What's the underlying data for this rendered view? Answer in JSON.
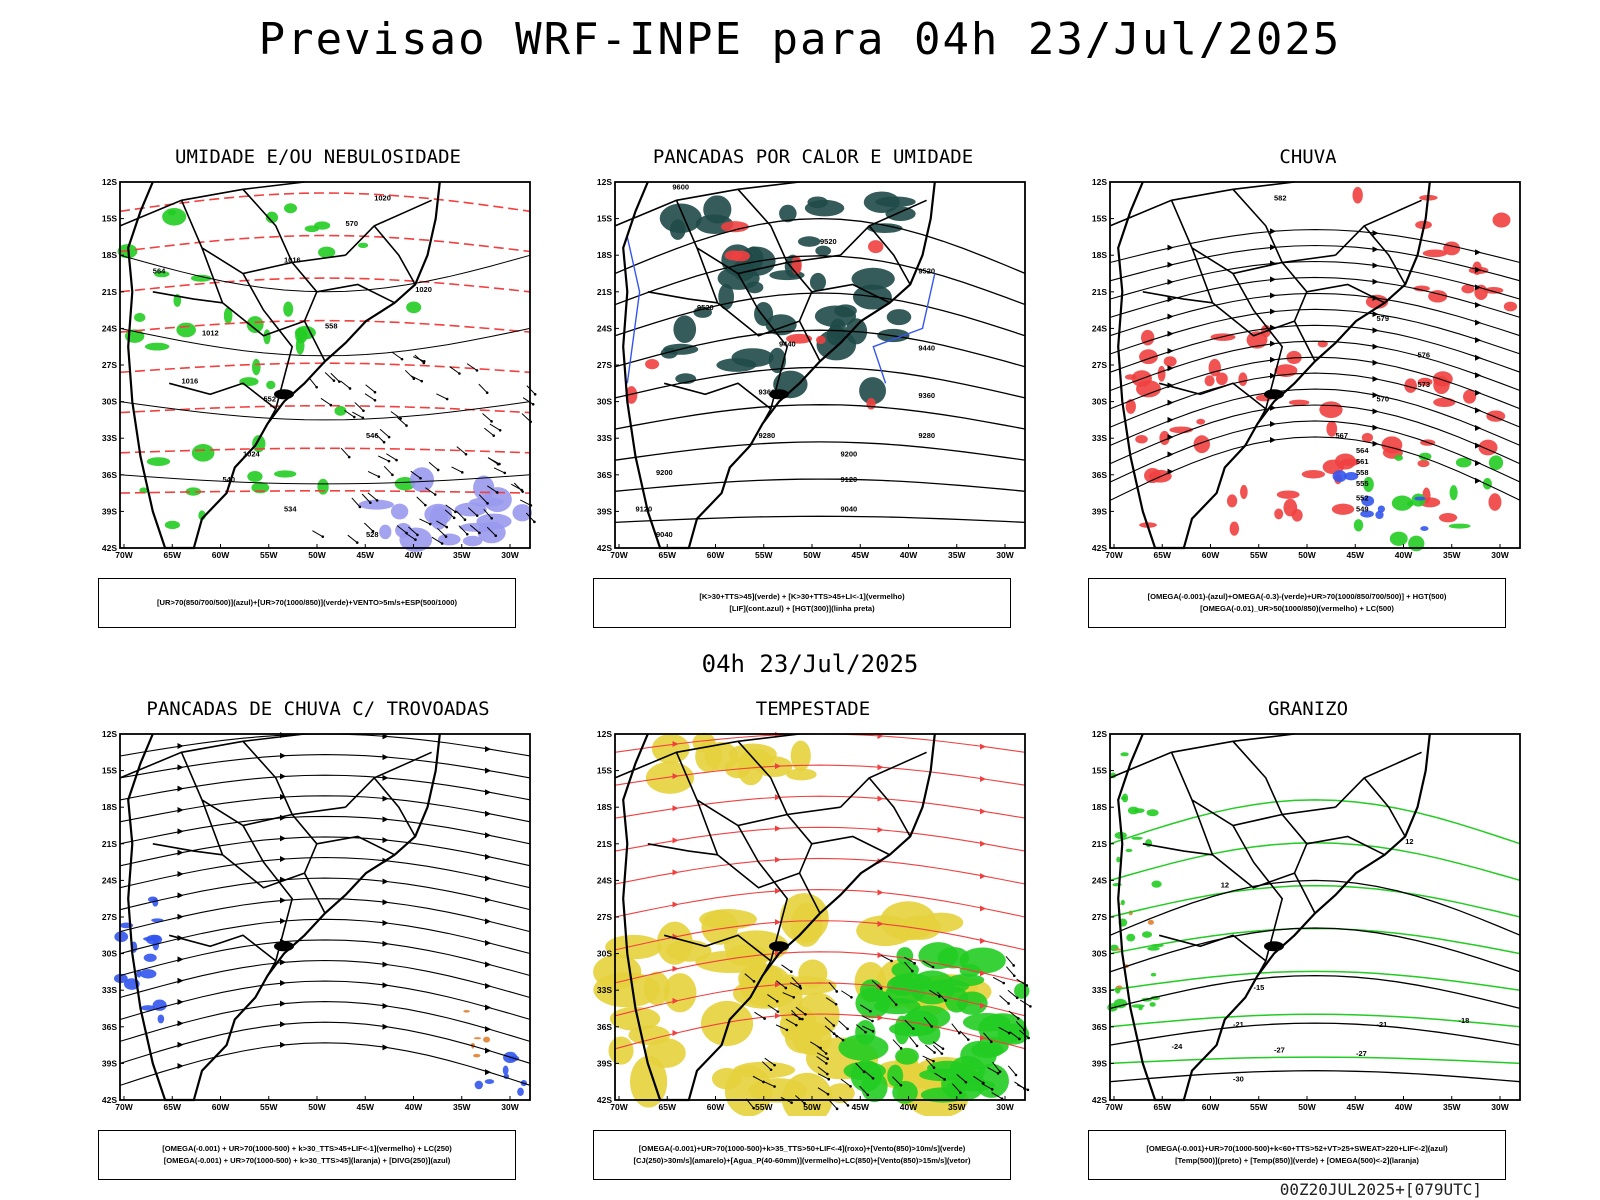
{
  "header": {
    "title": "Previsao WRF-INPE  para 04h 23/Jul/2025"
  },
  "middle_date": "04h 23/Jul/2025",
  "footer": "00Z20JUL2025+[079UTC]",
  "axes": {
    "lat_labels": [
      "12S",
      "15S",
      "18S",
      "21S",
      "24S",
      "27S",
      "30S",
      "33S",
      "36S",
      "39S",
      "42S"
    ],
    "lon_labels": [
      "70W",
      "65W",
      "60W",
      "55W",
      "50W",
      "45W",
      "40W",
      "35W",
      "30W"
    ]
  },
  "colors": {
    "red": "#f04040",
    "green": "#22cc22",
    "blue": "#3355ee",
    "lavender": "#9999ee",
    "dark_teal": "#1f4a48",
    "yellow": "#e6d23c",
    "orange": "#e08030"
  },
  "panels": [
    {
      "title": "UMIDADE E/OU NEBULOSIDADE",
      "legend": [
        "[UR>70(850/700/500)](azul)+[UR>70(1000/850)](verde)+VENTO>5m/s+ESP(500/1000)"
      ],
      "contour_labels": [
        "1020",
        "1016",
        "1012",
        "1020",
        "1024",
        "1016",
        "570",
        "564",
        "558",
        "552",
        "546",
        "540",
        "534",
        "528"
      ]
    },
    {
      "title": "PANCADAS POR CALOR E UMIDADE",
      "legend": [
        "[K>30+TTS>45](verde) + [K>30+TTS>45+LI<-1](vermelho)",
        "[LIF](cont.azul) + [HGT(300)](linha preta)"
      ],
      "contour_labels": [
        "9600",
        "9520",
        "9520",
        "9520",
        "9440",
        "9440",
        "9360",
        "9360",
        "9280",
        "9280",
        "9200",
        "9200",
        "9120",
        "9120",
        "9040",
        "9040"
      ]
    },
    {
      "title": "CHUVA",
      "legend": [
        "[OMEGA(-0.001)-(azul)+OMEGA(-0.3)-(verde)+UR>70(1000/850/700/500)] + HGT(500)",
        "[OMEGA(-0.01)_UR>50(1000/850)(vermelho) + LC(500)"
      ],
      "contour_labels": [
        "582",
        "579",
        "576",
        "573",
        "570",
        "567",
        "564",
        "561",
        "558",
        "555",
        "552",
        "549"
      ]
    },
    {
      "title": "PANCADAS DE CHUVA C/ TROVOADAS",
      "legend": [
        "[OMEGA(-0.001) + UR>70(1000-500) + k>30_TTS>45+LIF<-1](vermelho) + LC(250)",
        "[OMEGA(-0.001) + UR>70(1000-500) + k>30_TTS>45](laranja) + [DIVG(250)](azul)"
      ],
      "contour_labels": []
    },
    {
      "title": "TEMPESTADE",
      "legend": [
        "[OMEGA(-0.001)+UR>70(1000-500)+k>35_TTS>50+LIF<-4](roxo)+[Vento(850)>10m/s](verde)",
        "[CJ(250)>30m/s](amarelo)+[Agua_P(40-60mm)](vermelho)+LC(850)+[Vento(850)>15m/s](vetor)"
      ],
      "contour_labels": []
    },
    {
      "title": "GRANIZO",
      "legend": [
        "[OMEGA(-0.001)+UR>70(1000-500)+k<60+TTS>52+VT>25+SWEAT>220+LIF<-2](azul)",
        "[Temp(500)](preto) + [Temp(850)](verde) + [OMEGA(500)<-2](laranja)"
      ],
      "contour_labels": [
        "12",
        "12",
        "-18",
        "-21",
        "-21",
        "-24",
        "-27",
        "-27",
        "-30",
        "-15"
      ]
    }
  ]
}
